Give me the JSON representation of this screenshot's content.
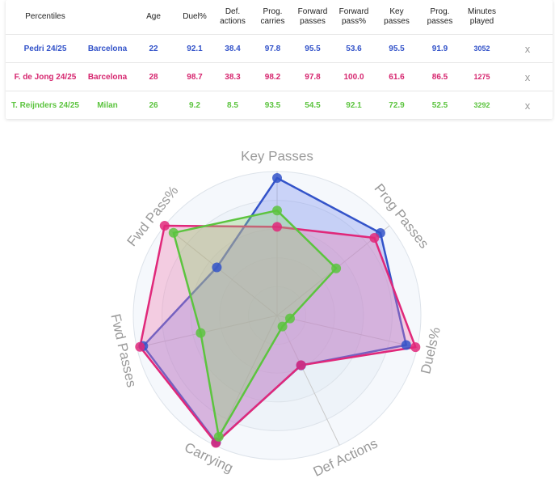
{
  "table": {
    "headers": [
      {
        "key": "name",
        "lines": [
          "Percentiles"
        ]
      },
      {
        "key": "team",
        "lines": [
          ""
        ]
      },
      {
        "key": "age",
        "lines": [
          "Age"
        ]
      },
      {
        "key": "duel",
        "lines": [
          "Duel%"
        ]
      },
      {
        "key": "def",
        "lines": [
          "Def.",
          "actions"
        ]
      },
      {
        "key": "prog_carries",
        "lines": [
          "Prog.",
          "carries"
        ]
      },
      {
        "key": "fwd_passes",
        "lines": [
          "Forward",
          "passes"
        ]
      },
      {
        "key": "fwd_pct",
        "lines": [
          "Forward",
          "pass%"
        ]
      },
      {
        "key": "key_passes",
        "lines": [
          "Key",
          "passes"
        ]
      },
      {
        "key": "prog_passes",
        "lines": [
          "Prog.",
          "passes"
        ]
      },
      {
        "key": "minutes",
        "lines": [
          "Minutes",
          "played"
        ]
      },
      {
        "key": "remove",
        "lines": [
          ""
        ]
      }
    ],
    "rows": [
      {
        "color": "#3353c9",
        "cells": [
          "Pedri 24/25",
          "Barcelona",
          "22",
          "92.1",
          "38.4",
          "97.8",
          "95.5",
          "53.6",
          "95.5",
          "91.9",
          "3052",
          "x"
        ]
      },
      {
        "color": "#d6266f",
        "cells": [
          "F. de Jong 24/25",
          "Barcelona",
          "28",
          "98.7",
          "38.3",
          "98.2",
          "97.8",
          "100.0",
          "61.6",
          "86.5",
          "1275",
          "x"
        ]
      },
      {
        "color": "#5cc43f",
        "cells": [
          "T. Reijnders 24/25",
          "Milan",
          "26",
          "9.2",
          "8.5",
          "93.5",
          "54.5",
          "92.1",
          "72.9",
          "52.5",
          "3292",
          "x"
        ]
      }
    ]
  },
  "chart_data": {
    "type": "radar",
    "axes": [
      "Key Passes",
      "Prog Passes",
      "Duels%",
      "Def Actions",
      "Carrying",
      "Fwd Passes",
      "Fwd Pass%"
    ],
    "range": [
      0,
      100
    ],
    "series": [
      {
        "name": "Pedri 24/25",
        "color": "#3353c9",
        "fill": "#7c8ff0",
        "values": [
          95.5,
          91.9,
          92.1,
          38.4,
          97.8,
          95.5,
          53.6
        ]
      },
      {
        "name": "F. de Jong 24/25",
        "color": "#e0287a",
        "fill": "#f07ab0",
        "values": [
          61.6,
          86.5,
          98.7,
          38.3,
          98.2,
          97.8,
          100.0
        ]
      },
      {
        "name": "T. Reijnders 24/25",
        "color": "#5cc43f",
        "fill": "#8ed870",
        "values": [
          72.9,
          52.5,
          9.2,
          8.5,
          93.5,
          54.5,
          92.1
        ]
      }
    ]
  }
}
